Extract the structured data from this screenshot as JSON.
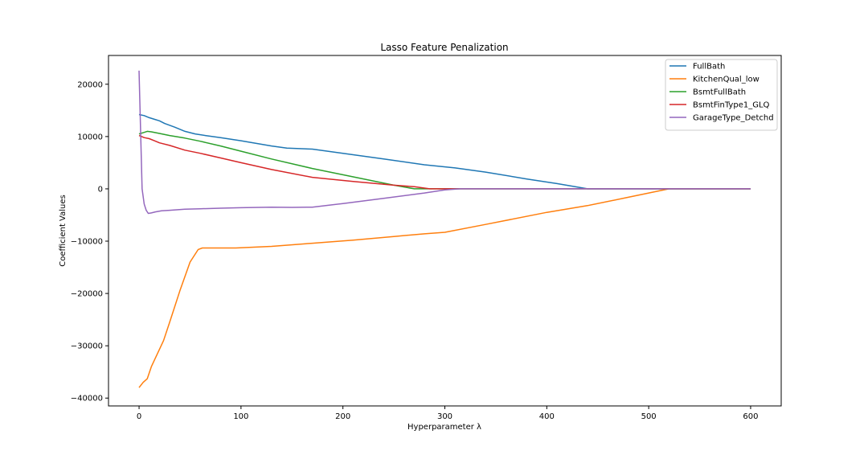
{
  "chart_data": {
    "type": "line",
    "title": "Lasso Feature Penalization",
    "xlabel": "Hyperparameter λ",
    "ylabel": "Coefficient Values",
    "xlim": [
      -30,
      630
    ],
    "ylim": [
      -41500,
      25500
    ],
    "xticks": [
      0,
      100,
      200,
      300,
      400,
      500,
      600
    ],
    "yticks": [
      -40000,
      -30000,
      -20000,
      -10000,
      0,
      10000,
      20000
    ],
    "grid": false,
    "legend_position": "top-right",
    "series": [
      {
        "name": "FullBath",
        "color": "#1f77b4",
        "x": [
          0,
          5,
          10,
          15,
          20,
          25,
          35,
          45,
          55,
          65,
          80,
          100,
          130,
          145,
          170,
          200,
          240,
          280,
          310,
          340,
          380,
          410,
          440,
          480,
          520,
          560,
          600
        ],
        "y": [
          14200,
          14000,
          13600,
          13300,
          13000,
          12500,
          11800,
          11000,
          10500,
          10200,
          9800,
          9200,
          8200,
          7800,
          7600,
          6800,
          5700,
          4600,
          4000,
          3200,
          1900,
          1000,
          0,
          0,
          0,
          0,
          0
        ]
      },
      {
        "name": "KitchenQual_low",
        "color": "#ff7f0e",
        "x": [
          0,
          4,
          8,
          12,
          18,
          24,
          30,
          40,
          50,
          58,
          62,
          75,
          95,
          130,
          170,
          210,
          250,
          280,
          300,
          340,
          400,
          440,
          480,
          520,
          560,
          600
        ],
        "y": [
          -38000,
          -37000,
          -36300,
          -34000,
          -31500,
          -29000,
          -25500,
          -19500,
          -14000,
          -11600,
          -11300,
          -11300,
          -11300,
          -11000,
          -10400,
          -9800,
          -9100,
          -8600,
          -8300,
          -6800,
          -4500,
          -3200,
          -1600,
          0,
          0,
          0
        ]
      },
      {
        "name": "BsmtFullBath",
        "color": "#2ca02c",
        "x": [
          0,
          5,
          8,
          12,
          20,
          30,
          45,
          60,
          80,
          100,
          130,
          170,
          210,
          250,
          270,
          280,
          300,
          350,
          400,
          450,
          500,
          550,
          600
        ],
        "y": [
          10500,
          10800,
          11000,
          10900,
          10600,
          10200,
          9700,
          9100,
          8200,
          7200,
          5700,
          3900,
          2300,
          700,
          0,
          0,
          0,
          0,
          0,
          0,
          0,
          0,
          0
        ]
      },
      {
        "name": "BsmtFinType1_GLQ",
        "color": "#d62728",
        "x": [
          0,
          5,
          10,
          15,
          20,
          30,
          45,
          60,
          80,
          100,
          130,
          170,
          210,
          250,
          270,
          285,
          300,
          350,
          400,
          450,
          500,
          550,
          600
        ],
        "y": [
          10200,
          9800,
          9600,
          9200,
          8800,
          8300,
          7400,
          6800,
          5900,
          5000,
          3700,
          2200,
          1400,
          700,
          400,
          0,
          0,
          0,
          0,
          0,
          0,
          0,
          0
        ]
      },
      {
        "name": "GarageType_Detchd",
        "color": "#9467bd",
        "x": [
          0,
          3,
          5,
          7,
          9,
          12,
          16,
          22,
          30,
          45,
          60,
          80,
          100,
          130,
          150,
          170,
          200,
          240,
          280,
          300,
          315,
          350,
          400,
          450,
          500,
          550,
          600
        ],
        "y": [
          22600,
          0,
          -2900,
          -4100,
          -4700,
          -4600,
          -4400,
          -4200,
          -4100,
          -3900,
          -3800,
          -3700,
          -3600,
          -3500,
          -3550,
          -3500,
          -2800,
          -1800,
          -800,
          -200,
          0,
          0,
          0,
          0,
          0,
          0,
          0
        ]
      }
    ]
  }
}
